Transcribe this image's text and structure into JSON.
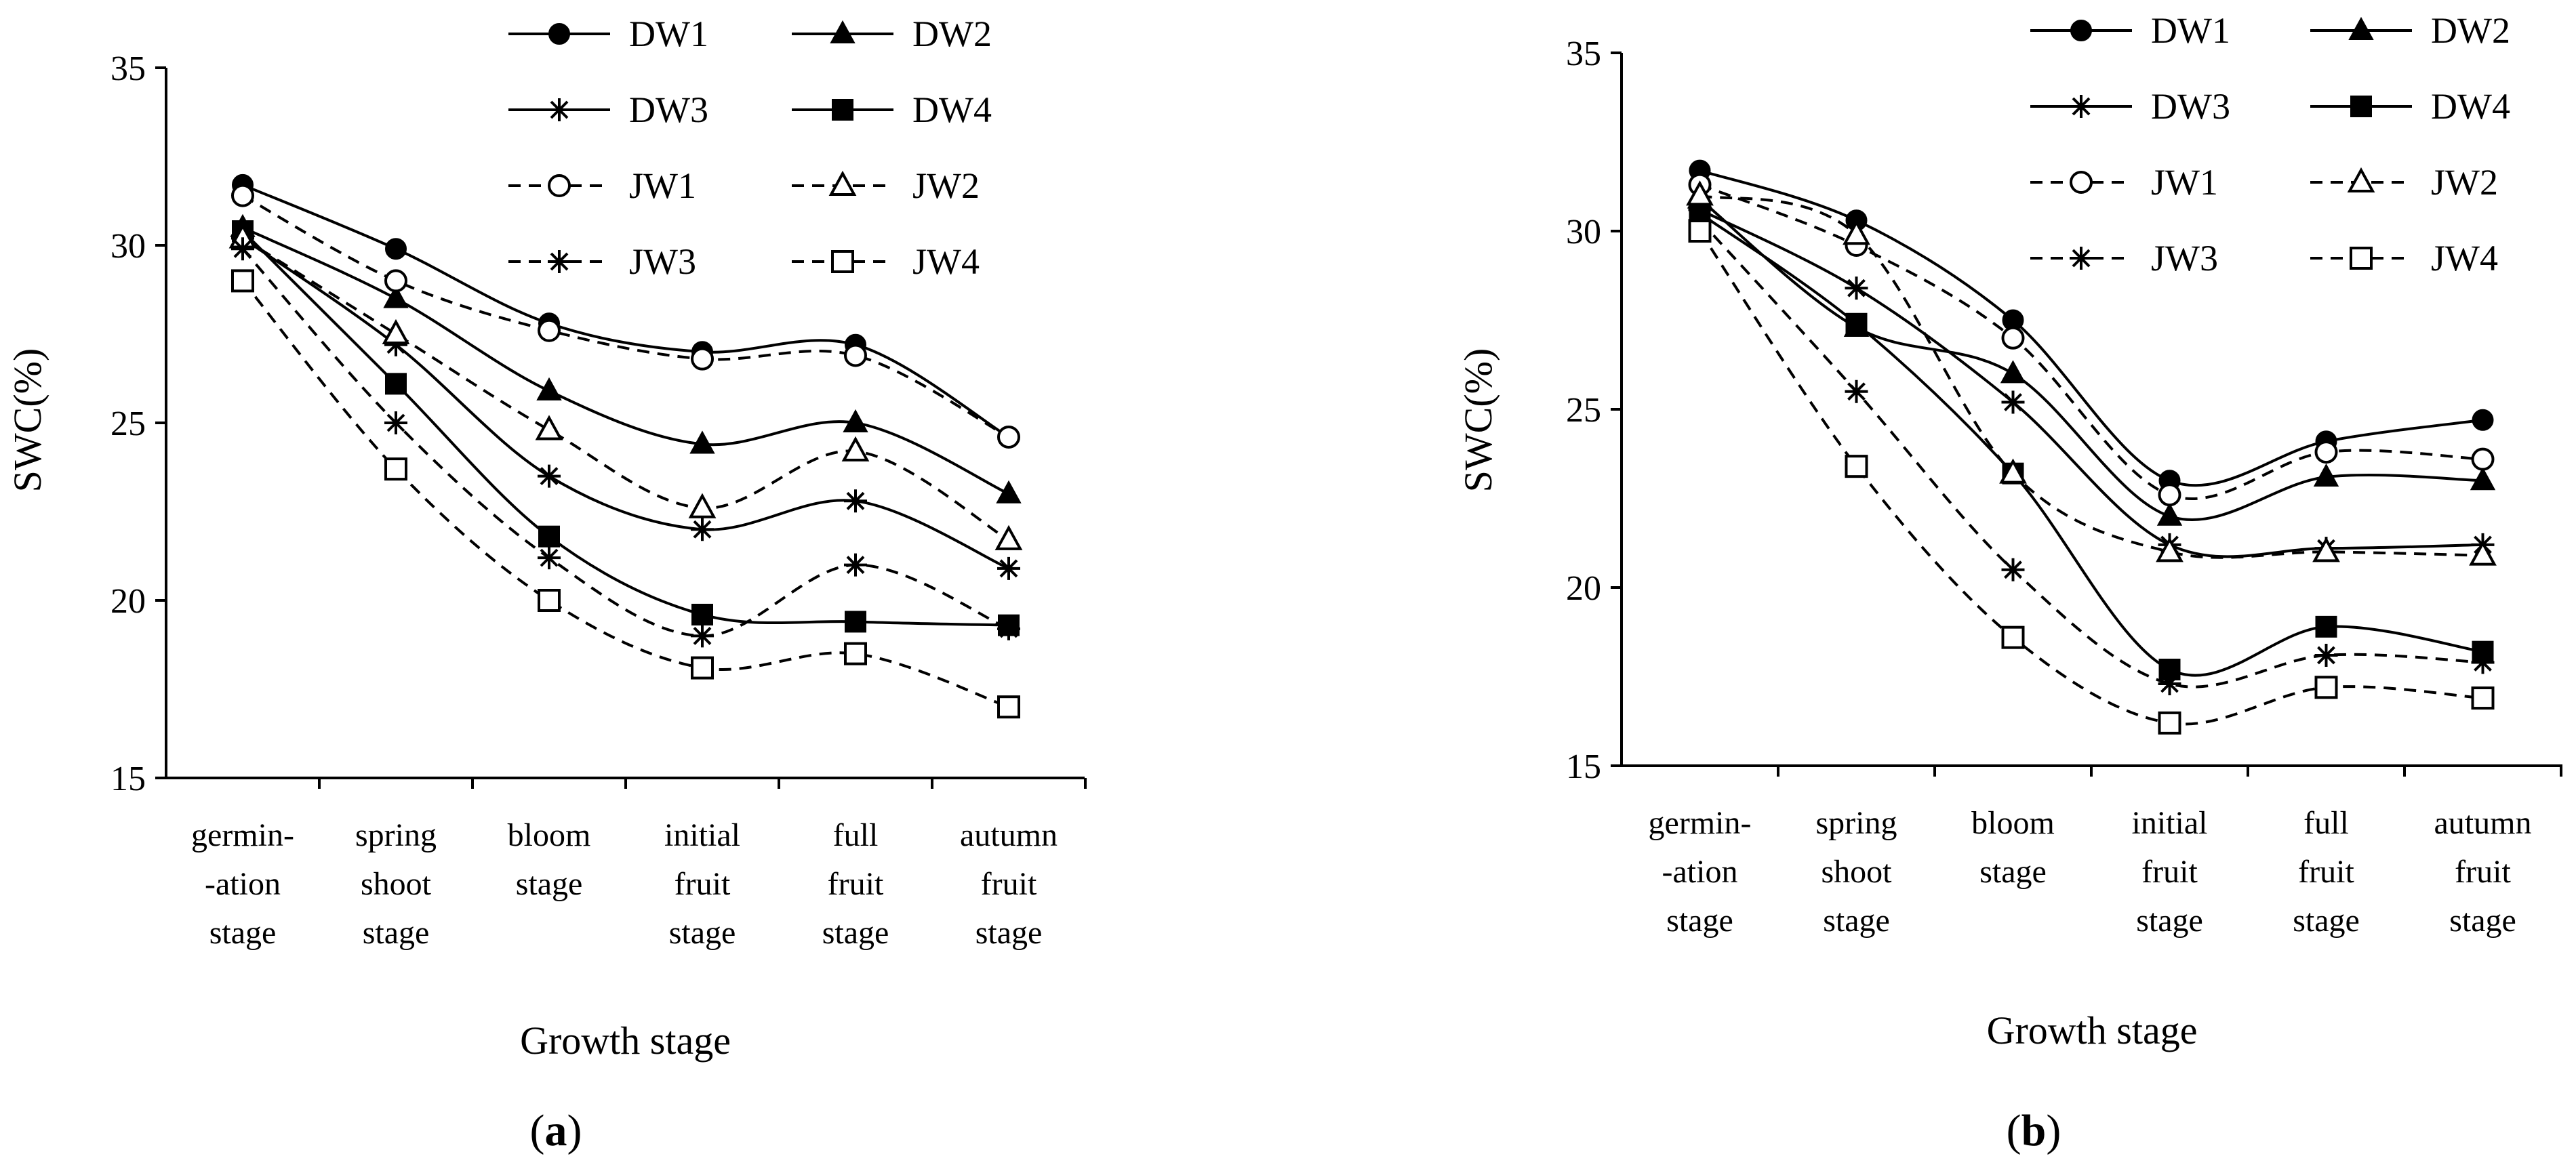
{
  "chart_data": [
    {
      "type": "line",
      "panel_label_open": "(",
      "panel_label_letter": "a",
      "panel_label_close": ")",
      "xlabel": "Growth stage",
      "ylabel": "SWC(%)",
      "ylim": [
        15,
        35
      ],
      "yticks": [
        "15",
        "20",
        "25",
        "30",
        "35"
      ],
      "categories": [
        [
          "germin-",
          "-ation",
          "stage"
        ],
        [
          "spring",
          "shoot",
          "stage"
        ],
        [
          "bloom",
          "stage"
        ],
        [
          "initial",
          "fruit",
          "stage"
        ],
        [
          "full",
          "fruit",
          "stage"
        ],
        [
          "autumn",
          "fruit",
          "stage"
        ]
      ],
      "legend_placement": "top-right",
      "series": [
        {
          "name": "DW1",
          "line": "solid",
          "marker": "filled-circle",
          "values": [
            31.7,
            29.9,
            27.8,
            27.0,
            27.2,
            24.6
          ]
        },
        {
          "name": "DW2",
          "line": "solid",
          "marker": "filled-triangle",
          "values": [
            30.5,
            28.5,
            25.9,
            24.4,
            25.0,
            23.0
          ]
        },
        {
          "name": "DW3",
          "line": "solid",
          "marker": "star",
          "values": [
            30.2,
            27.2,
            23.5,
            22.0,
            22.8,
            20.9
          ]
        },
        {
          "name": "DW4",
          "line": "solid",
          "marker": "filled-square",
          "values": [
            30.4,
            26.1,
            21.8,
            19.6,
            19.4,
            19.3
          ]
        },
        {
          "name": "JW1",
          "line": "dashed",
          "marker": "open-circle",
          "values": [
            31.4,
            29.0,
            27.6,
            26.8,
            26.9,
            24.6
          ]
        },
        {
          "name": "JW2",
          "line": "dashed",
          "marker": "open-triangle",
          "values": [
            30.2,
            27.5,
            24.8,
            22.6,
            24.2,
            21.7
          ]
        },
        {
          "name": "JW3",
          "line": "dashed",
          "marker": "star",
          "values": [
            29.9,
            25.0,
            21.2,
            19.0,
            21.0,
            19.2
          ]
        },
        {
          "name": "JW4",
          "line": "dashed",
          "marker": "open-square",
          "values": [
            29.0,
            23.7,
            20.0,
            18.1,
            18.5,
            17.0
          ]
        }
      ]
    },
    {
      "type": "line",
      "panel_label_open": "(",
      "panel_label_letter": "b",
      "panel_label_close": ")",
      "xlabel": "Growth stage",
      "ylabel": "SWC(%)",
      "ylim": [
        15,
        35
      ],
      "yticks": [
        "15",
        "20",
        "25",
        "30",
        "35"
      ],
      "categories": [
        [
          "germin-",
          "-ation",
          "stage"
        ],
        [
          "spring",
          "shoot",
          "stage"
        ],
        [
          "bloom",
          "stage"
        ],
        [
          "initial",
          "fruit",
          "stage"
        ],
        [
          "full",
          "fruit",
          "stage"
        ],
        [
          "autumn",
          "fruit",
          "stage"
        ]
      ],
      "legend_placement": "top-right",
      "series": [
        {
          "name": "DW1",
          "line": "solid",
          "marker": "filled-circle",
          "values": [
            31.7,
            30.3,
            27.5,
            23.0,
            24.1,
            24.7
          ]
        },
        {
          "name": "DW2",
          "line": "solid",
          "marker": "filled-triangle",
          "values": [
            30.9,
            27.3,
            26.0,
            22.0,
            23.1,
            23.0
          ]
        },
        {
          "name": "DW3",
          "line": "solid",
          "marker": "star",
          "values": [
            30.6,
            28.4,
            25.2,
            21.2,
            21.1,
            21.2
          ]
        },
        {
          "name": "DW4",
          "line": "solid",
          "marker": "filled-square",
          "values": [
            30.5,
            27.4,
            23.2,
            17.7,
            18.9,
            18.2
          ]
        },
        {
          "name": "JW1",
          "line": "dashed",
          "marker": "open-circle",
          "values": [
            31.3,
            29.6,
            27.0,
            22.6,
            23.8,
            23.6
          ]
        },
        {
          "name": "JW2",
          "line": "dashed",
          "marker": "open-triangle",
          "values": [
            31.0,
            29.9,
            23.2,
            21.0,
            21.0,
            20.9
          ]
        },
        {
          "name": "JW3",
          "line": "dashed",
          "marker": "star",
          "values": [
            30.3,
            25.5,
            20.5,
            17.3,
            18.1,
            17.9
          ]
        },
        {
          "name": "JW4",
          "line": "dashed",
          "marker": "open-square",
          "values": [
            30.0,
            23.4,
            18.6,
            16.2,
            17.2,
            16.9
          ]
        }
      ]
    }
  ]
}
